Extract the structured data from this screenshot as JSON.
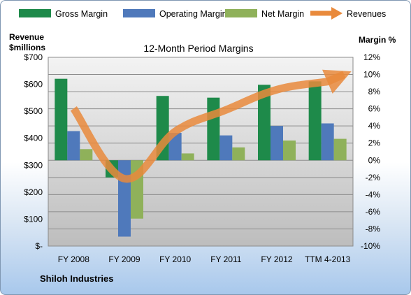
{
  "chart_data": {
    "type": "bar",
    "title": "12-Month Period Margins",
    "company": "Shiloh Industries",
    "categories": [
      "FY 2008",
      "FY 2009",
      "FY 2010",
      "FY 2011",
      "FY 2012",
      "TTM 4-2013"
    ],
    "series": [
      {
        "name": "Gross Margin",
        "axis": "right",
        "kind": "bar",
        "color": "#1e8a4a",
        "values": [
          9.5,
          -2.0,
          7.5,
          7.3,
          8.8,
          9.2
        ]
      },
      {
        "name": "Operating Margin",
        "axis": "right",
        "kind": "bar",
        "color": "#4f79bb",
        "values": [
          3.4,
          -8.9,
          3.2,
          2.9,
          4.0,
          4.3
        ]
      },
      {
        "name": "Net Margin",
        "axis": "right",
        "kind": "bar",
        "color": "#8fb15a",
        "values": [
          1.3,
          -6.8,
          0.8,
          1.5,
          2.3,
          2.5
        ]
      },
      {
        "name": "Revenues",
        "axis": "left",
        "kind": "line",
        "color": "#e98a3c",
        "values": [
          510,
          250,
          425,
          505,
          580,
          610
        ]
      }
    ],
    "left_axis": {
      "label_line1": "Revenue",
      "label_line2": "$millions",
      "range": [
        0,
        700
      ],
      "tick_values": [
        0,
        100,
        200,
        300,
        400,
        500,
        600,
        700
      ],
      "tick_labels": [
        "$-",
        "$100",
        "$200",
        "$300",
        "$400",
        "$500",
        "$600",
        "$700"
      ]
    },
    "right_axis": {
      "label": "Margin %",
      "range": [
        -10,
        12
      ],
      "tick_values": [
        -10,
        -8,
        -6,
        -4,
        -2,
        0,
        2,
        4,
        6,
        8,
        10,
        12
      ],
      "tick_labels": [
        "-10%",
        "-8%",
        "-6%",
        "-4%",
        "-2%",
        "0%",
        "2%",
        "4%",
        "6%",
        "8%",
        "10%",
        "12%"
      ]
    },
    "grid": true,
    "legend_position": "top"
  }
}
